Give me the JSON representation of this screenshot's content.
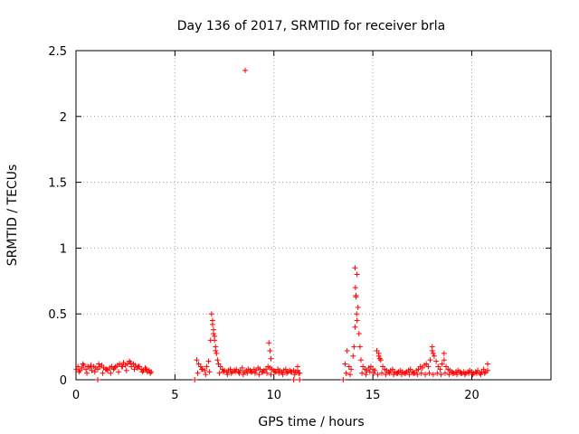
{
  "chart_data": {
    "type": "scatter",
    "title": "Day 136 of 2017, SRMTID for receiver brla",
    "xlabel": "GPS time / hours",
    "ylabel": "SRMTID / TECUs",
    "xlim": [
      0,
      24
    ],
    "ylim": [
      0,
      2.5
    ],
    "xticks": [
      0,
      5,
      10,
      15,
      20
    ],
    "xtick_labels": [
      "0",
      "5",
      "10",
      "15",
      "20"
    ],
    "yticks": [
      0,
      0.5,
      1,
      1.5,
      2,
      2.5
    ],
    "ytick_labels": [
      "0",
      "0.5",
      "1",
      "1.5",
      "2",
      "2.5"
    ],
    "grid": true,
    "marker": "+",
    "series": [
      {
        "name": "SRMTID",
        "color": "#ff0000",
        "x": [
          0.02,
          0.1,
          0.2,
          0.3,
          0.4,
          0.5,
          0.6,
          0.7,
          0.8,
          0.9,
          1.0,
          1.1,
          1.2,
          1.3,
          1.4,
          1.5,
          1.6,
          1.7,
          1.8,
          1.9,
          2.0,
          2.1,
          2.2,
          2.3,
          2.4,
          2.5,
          2.6,
          2.7,
          2.8,
          2.9,
          3.0,
          3.1,
          3.2,
          3.3,
          3.4,
          3.5,
          3.6,
          3.7,
          3.8,
          0.15,
          0.35,
          0.55,
          0.75,
          0.95,
          1.15,
          1.35,
          1.55,
          1.75,
          1.95,
          2.15,
          2.35,
          2.55,
          2.75,
          2.95,
          3.15,
          3.35,
          3.55,
          3.75,
          1.1,
          6.0,
          6.1,
          6.2,
          6.3,
          6.4,
          6.5,
          6.6,
          6.7,
          6.8,
          6.85,
          6.9,
          6.95,
          7.0,
          7.05,
          7.1,
          7.15,
          7.2,
          7.3,
          7.4,
          7.5,
          7.6,
          7.7,
          7.8,
          7.9,
          8.0,
          8.1,
          8.2,
          8.3,
          8.4,
          8.5,
          8.6,
          8.7,
          8.8,
          8.9,
          9.0,
          9.1,
          9.2,
          9.3,
          9.4,
          9.5,
          9.6,
          9.7,
          9.8,
          9.9,
          10.0,
          10.1,
          10.2,
          10.3,
          10.4,
          10.5,
          10.6,
          10.7,
          10.8,
          10.9,
          11.0,
          11.1,
          11.2,
          11.3,
          6.15,
          6.35,
          6.55,
          6.75,
          7.25,
          7.45,
          7.65,
          7.85,
          8.05,
          8.25,
          8.45,
          8.65,
          8.85,
          9.05,
          9.25,
          9.45,
          9.65,
          9.85,
          10.05,
          10.25,
          10.45,
          10.65,
          10.85,
          11.05,
          11.25,
          6.9,
          6.95,
          7.0,
          7.05,
          9.75,
          9.8,
          9.85,
          11.2,
          8.55,
          11.0,
          11.3,
          13.5,
          13.6,
          13.7,
          13.8,
          13.9,
          14.0,
          14.05,
          14.1,
          14.15,
          14.2,
          14.25,
          14.3,
          14.35,
          14.4,
          14.5,
          14.6,
          14.7,
          14.8,
          14.9,
          15.0,
          15.1,
          15.2,
          15.3,
          15.4,
          15.5,
          15.6,
          15.7,
          15.8,
          15.9,
          16.0,
          16.1,
          16.2,
          16.3,
          16.4,
          16.5,
          16.6,
          16.7,
          16.8,
          16.9,
          17.0,
          17.1,
          17.2,
          17.3,
          17.4,
          17.5,
          17.6,
          17.7,
          17.8,
          17.9,
          18.0,
          18.1,
          18.2,
          18.3,
          18.4,
          18.5,
          18.6,
          18.7,
          18.8,
          18.9,
          19.0,
          19.1,
          19.2,
          19.3,
          19.4,
          19.5,
          19.6,
          19.7,
          19.8,
          19.9,
          20.0,
          20.1,
          20.2,
          20.3,
          20.4,
          20.5,
          20.6,
          20.7,
          20.8,
          13.65,
          13.85,
          14.45,
          14.65,
          14.85,
          15.05,
          15.25,
          15.45,
          15.65,
          15.85,
          16.05,
          16.25,
          16.45,
          16.65,
          16.85,
          17.05,
          17.25,
          17.45,
          17.65,
          17.85,
          18.05,
          18.25,
          18.45,
          18.65,
          18.85,
          19.05,
          19.25,
          19.45,
          19.65,
          19.85,
          20.05,
          20.25,
          20.45,
          20.65,
          14.1,
          14.12,
          14.15,
          14.18,
          14.2,
          15.3,
          15.35,
          18.0,
          18.05,
          18.6,
          20.8
        ],
        "y": [
          0.08,
          0.1,
          0.07,
          0.09,
          0.11,
          0.08,
          0.1,
          0.09,
          0.07,
          0.1,
          0.09,
          0.08,
          0.1,
          0.11,
          0.09,
          0.08,
          0.07,
          0.09,
          0.1,
          0.08,
          0.1,
          0.11,
          0.12,
          0.1,
          0.13,
          0.11,
          0.12,
          0.14,
          0.1,
          0.12,
          0.11,
          0.09,
          0.1,
          0.08,
          0.07,
          0.09,
          0.06,
          0.07,
          0.06,
          0.06,
          0.12,
          0.05,
          0.11,
          0.06,
          0.12,
          0.05,
          0.08,
          0.05,
          0.09,
          0.06,
          0.1,
          0.07,
          0.13,
          0.08,
          0.1,
          0.06,
          0.08,
          0.05,
          0.0,
          0.0,
          0.15,
          0.12,
          0.1,
          0.08,
          0.07,
          0.1,
          0.14,
          0.3,
          0.5,
          0.45,
          0.35,
          0.3,
          0.25,
          0.2,
          0.15,
          0.12,
          0.1,
          0.08,
          0.07,
          0.06,
          0.07,
          0.08,
          0.06,
          0.07,
          0.08,
          0.06,
          0.07,
          0.09,
          0.06,
          0.07,
          0.08,
          0.07,
          0.06,
          0.08,
          0.07,
          0.09,
          0.08,
          0.06,
          0.07,
          0.08,
          0.1,
          0.09,
          0.08,
          0.07,
          0.06,
          0.08,
          0.07,
          0.06,
          0.07,
          0.08,
          0.06,
          0.07,
          0.06,
          0.07,
          0.06,
          0.07,
          0.05,
          0.05,
          0.08,
          0.04,
          0.06,
          0.05,
          0.06,
          0.04,
          0.05,
          0.06,
          0.05,
          0.04,
          0.05,
          0.06,
          0.05,
          0.04,
          0.06,
          0.05,
          0.04,
          0.06,
          0.05,
          0.04,
          0.05,
          0.06,
          0.04,
          0.05,
          0.42,
          0.38,
          0.33,
          0.22,
          0.28,
          0.22,
          0.16,
          0.1,
          2.35,
          0.0,
          0.0,
          0.0,
          0.12,
          0.22,
          0.1,
          0.08,
          0.18,
          0.25,
          0.4,
          0.63,
          0.8,
          0.55,
          0.35,
          0.25,
          0.15,
          0.1,
          0.08,
          0.07,
          0.09,
          0.1,
          0.08,
          0.07,
          0.22,
          0.18,
          0.15,
          0.1,
          0.08,
          0.07,
          0.06,
          0.07,
          0.08,
          0.06,
          0.05,
          0.06,
          0.07,
          0.06,
          0.05,
          0.06,
          0.07,
          0.08,
          0.06,
          0.05,
          0.07,
          0.08,
          0.1,
          0.09,
          0.11,
          0.12,
          0.1,
          0.15,
          0.22,
          0.18,
          0.14,
          0.1,
          0.08,
          0.12,
          0.15,
          0.1,
          0.08,
          0.07,
          0.06,
          0.05,
          0.06,
          0.07,
          0.06,
          0.05,
          0.06,
          0.05,
          0.06,
          0.07,
          0.06,
          0.05,
          0.06,
          0.07,
          0.05,
          0.06,
          0.08,
          0.06,
          0.07,
          0.05,
          0.04,
          0.05,
          0.04,
          0.06,
          0.05,
          0.04,
          0.05,
          0.04,
          0.05,
          0.04,
          0.05,
          0.04,
          0.05,
          0.04,
          0.05,
          0.04,
          0.05,
          0.04,
          0.05,
          0.04,
          0.05,
          0.04,
          0.05,
          0.04,
          0.05,
          0.04,
          0.05,
          0.04,
          0.05,
          0.04,
          0.05,
          0.04,
          0.05,
          0.85,
          0.7,
          0.64,
          0.5,
          0.45,
          0.2,
          0.16,
          0.25,
          0.2,
          0.2,
          0.12
        ]
      }
    ]
  }
}
